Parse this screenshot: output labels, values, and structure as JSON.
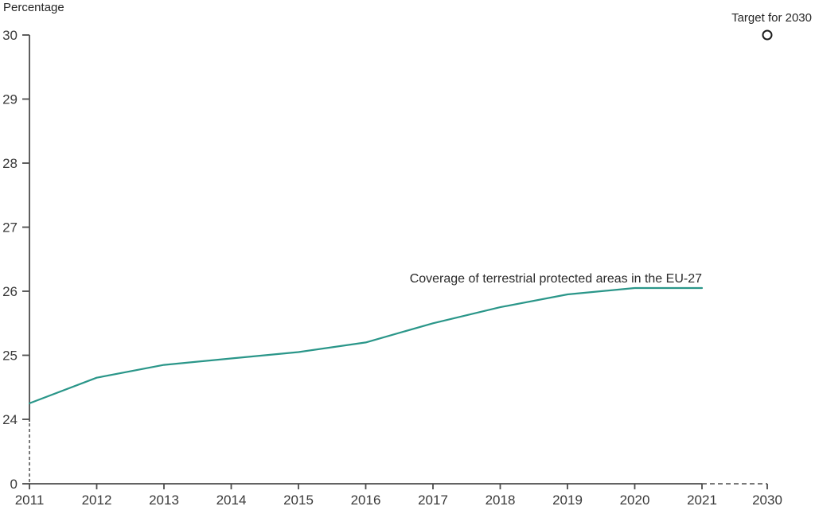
{
  "page": {
    "background_color": "#ffffff"
  },
  "labels": {
    "y_axis_title": "Percentage",
    "series_label": "Coverage of terrestrial protected areas in the EU-27",
    "target_label": "Target for 2030"
  },
  "chart_data": {
    "type": "line",
    "title": "",
    "xlabel": "",
    "ylabel": "Percentage",
    "x": [
      2011,
      2012,
      2013,
      2014,
      2015,
      2016,
      2017,
      2018,
      2019,
      2020,
      2021
    ],
    "series": [
      {
        "name": "Coverage of terrestrial protected areas in the EU-27",
        "values": [
          24.25,
          24.65,
          24.85,
          24.95,
          25.05,
          25.2,
          25.5,
          25.75,
          25.95,
          26.05,
          26.05
        ],
        "color": "#2a9689"
      }
    ],
    "target": {
      "label": "Target for 2030",
      "year": 2030,
      "value": 30,
      "marker": "open-circle",
      "marker_stroke_color": "#1c1c1c",
      "marker_fill_color": "#ffffff"
    },
    "y_ticks": [
      0,
      24,
      25,
      26,
      27,
      28,
      29,
      30
    ],
    "x_tick_labels": [
      "2011",
      "2012",
      "2013",
      "2014",
      "2015",
      "2016",
      "2017",
      "2018",
      "2019",
      "2020",
      "2021",
      "2030"
    ],
    "axis_break": {
      "y_dashed_between": [
        0,
        24
      ],
      "x_dashed_between": [
        2021,
        2030
      ]
    },
    "grid": false,
    "legend_position": "inline-above-line-end",
    "axis_color": "#4d4d4d",
    "text_color": "#3a3a3a"
  }
}
